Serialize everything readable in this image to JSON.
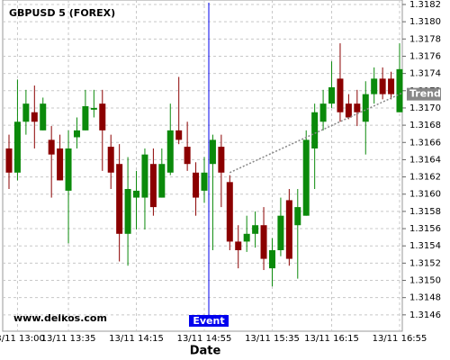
{
  "chart_data": {
    "type": "candlestick",
    "title": "GBPUSD 5 (FOREX)",
    "x_label": "Date",
    "watermark": "www.delkos.com",
    "up_color": "#0b8a0b",
    "down_color": "#8b0000",
    "grid": true,
    "categories": [
      null,
      "13/11 13:00",
      null,
      null,
      null,
      null,
      null,
      "13/11 13:35",
      null,
      null,
      null,
      null,
      null,
      null,
      null,
      "13/11 14:15",
      null,
      null,
      null,
      null,
      null,
      null,
      null,
      "13/11 14:55",
      null,
      null,
      null,
      null,
      null,
      null,
      null,
      "13/11 15:35",
      null,
      null,
      null,
      null,
      null,
      null,
      "13/11 16:15",
      null,
      null,
      null,
      null,
      null,
      null,
      null,
      "13/11 16:55"
    ],
    "open": [
      1.31653,
      1.31625,
      1.31684,
      1.31695,
      1.31674,
      1.31663,
      1.31653,
      1.31604,
      1.31666,
      1.31674,
      1.31698,
      1.31705,
      1.31655,
      1.31635,
      1.31554,
      1.31596,
      1.31596,
      1.31635,
      1.31596,
      1.31625,
      1.31674,
      1.31655,
      1.31625,
      1.31604,
      1.31635,
      1.31655,
      1.31614,
      1.31545,
      1.31545,
      1.31554,
      1.31564,
      1.31514,
      1.31535,
      1.31593,
      1.31564,
      1.31575,
      1.31653,
      1.31684,
      1.31705,
      1.31734,
      1.31705,
      1.31705,
      1.31684,
      1.31716,
      1.31734,
      1.31734,
      1.31695
    ],
    "high": [
      1.31669,
      1.31733,
      1.31721,
      1.31726,
      1.31712,
      1.31679,
      1.31669,
      1.31674,
      1.31689,
      1.31721,
      1.31721,
      1.31721,
      1.31669,
      1.31658,
      1.31643,
      1.31627,
      1.31653,
      1.31653,
      1.31653,
      1.31705,
      1.31736,
      1.31684,
      1.31637,
      1.31643,
      1.31669,
      1.31669,
      1.31622,
      1.31564,
      1.31575,
      1.3158,
      1.31585,
      1.31549,
      1.31596,
      1.31606,
      1.31606,
      1.31674,
      1.31705,
      1.31721,
      1.31754,
      1.31775,
      1.31716,
      1.31721,
      1.31731,
      1.31747,
      1.31747,
      1.31742,
      1.31775
    ],
    "low": [
      1.31606,
      1.31616,
      1.31669,
      1.31653,
      1.31674,
      1.31596,
      1.31616,
      1.31543,
      1.31653,
      1.31674,
      1.31689,
      1.31627,
      1.31606,
      1.31522,
      1.31517,
      1.31559,
      1.31559,
      1.31575,
      1.31596,
      1.31622,
      1.31658,
      1.31627,
      1.31575,
      1.3159,
      1.31535,
      1.31585,
      1.31535,
      1.31514,
      1.31533,
      1.31538,
      1.31512,
      1.31493,
      1.31528,
      1.31517,
      1.31502,
      1.31575,
      1.31606,
      1.31674,
      1.317,
      1.31684,
      1.31687,
      1.31679,
      1.31646,
      1.31705,
      1.3171,
      1.3171,
      1.31695
    ],
    "close": [
      1.31625,
      1.31684,
      1.31705,
      1.31684,
      1.31705,
      1.31646,
      1.31616,
      1.31653,
      1.31674,
      1.31702,
      1.317,
      1.31674,
      1.31625,
      1.31554,
      1.31606,
      1.31604,
      1.31646,
      1.31585,
      1.31635,
      1.31674,
      1.31663,
      1.31635,
      1.31596,
      1.31625,
      1.31663,
      1.31625,
      1.31545,
      1.31535,
      1.31554,
      1.31564,
      1.31525,
      1.31535,
      1.31575,
      1.31525,
      1.31585,
      1.31663,
      1.31695,
      1.31705,
      1.31724,
      1.31695,
      1.31689,
      1.31695,
      1.31716,
      1.31734,
      1.31716,
      1.31716,
      1.31745
    ],
    "ylim": [
      1.3144,
      1.3182
    ],
    "yticks": [
      1.3146,
      1.3148,
      {
        "value": 1.315,
        "label": "1.3150"
      },
      1.3152,
      1.3154,
      1.3156,
      1.3158,
      {
        "value": 1.316,
        "label": "1.3160"
      },
      1.3162,
      1.3164,
      1.3166,
      1.3168,
      {
        "value": 1.317,
        "label": "1.3170"
      },
      1.3172,
      1.3174,
      1.3176,
      1.3178,
      {
        "value": 1.318,
        "label": "1.3180"
      },
      1.3182
    ],
    "event": {
      "label": "Event",
      "category_index": 23,
      "color": "#0000ee"
    },
    "trend": {
      "label": "Trend",
      "start_index": 26,
      "end_index": 46,
      "values": [
        1.31625,
        1.31716
      ],
      "color": "#888888"
    }
  }
}
